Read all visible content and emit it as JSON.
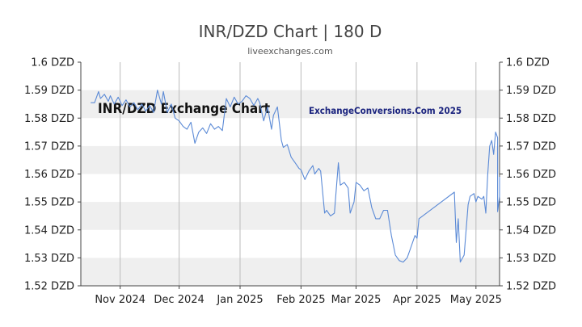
{
  "header": {
    "title": "INR/DZD Chart | 180 D",
    "subtitle": "liveexchanges.com"
  },
  "watermark": {
    "left": "INR/DZD Exchange Chart",
    "right": "ExchangeConversions.Com 2025"
  },
  "colors": {
    "line": "#5b8ad6",
    "band": "#efefef",
    "grid": "#bbbbbb",
    "axis": "#444444"
  },
  "chart_data": {
    "type": "line",
    "title": "INR/DZD Chart | 180 D",
    "ylim": [
      1.52,
      1.6
    ],
    "y_ticks": [
      1.52,
      1.53,
      1.54,
      1.55,
      1.56,
      1.57,
      1.58,
      1.59,
      1.6
    ],
    "y_tick_labels": [
      "1.52 DZD",
      "1.53 DZD",
      "1.54 DZD",
      "1.55 DZD",
      "1.56 DZD",
      "1.57 DZD",
      "1.58 DZD",
      "1.59 DZD",
      "1.6 DZD"
    ],
    "x_range": [
      "2024-10-12",
      "2025-05-13"
    ],
    "x_ticks": [
      "2024-11-01",
      "2024-12-01",
      "2025-01-01",
      "2025-02-01",
      "2025-03-01",
      "2025-04-01",
      "2025-05-01"
    ],
    "x_tick_labels": [
      "Nov 2024",
      "Dec 2024",
      "Jan 2025",
      "Feb 2025",
      "Mar 2025",
      "Apr 2025",
      "May 2025"
    ],
    "grid": true,
    "series": [
      {
        "points": [
          [
            "2024-10-17",
            1.5855
          ],
          [
            "2024-10-19",
            1.5855
          ],
          [
            "2024-10-21",
            1.5895
          ],
          [
            "2024-10-22",
            1.587
          ],
          [
            "2024-10-24",
            1.5885
          ],
          [
            "2024-10-26",
            1.586
          ],
          [
            "2024-10-27",
            1.588
          ],
          [
            "2024-10-29",
            1.585
          ],
          [
            "2024-10-31",
            1.5875
          ],
          [
            "2024-11-02",
            1.5845
          ],
          [
            "2024-11-04",
            1.5865
          ],
          [
            "2024-11-06",
            1.584
          ],
          [
            "2024-11-08",
            1.5855
          ],
          [
            "2024-11-10",
            1.583
          ],
          [
            "2024-11-12",
            1.585
          ],
          [
            "2024-11-14",
            1.5825
          ],
          [
            "2024-11-16",
            1.5845
          ],
          [
            "2024-11-18",
            1.582
          ],
          [
            "2024-11-20",
            1.59
          ],
          [
            "2024-11-22",
            1.585
          ],
          [
            "2024-11-23",
            1.5895
          ],
          [
            "2024-11-25",
            1.582
          ],
          [
            "2024-11-27",
            1.585
          ],
          [
            "2024-11-29",
            1.58
          ],
          [
            "2024-12-01",
            1.579
          ],
          [
            "2024-12-03",
            1.577
          ],
          [
            "2024-12-05",
            1.576
          ],
          [
            "2024-12-07",
            1.5785
          ],
          [
            "2024-12-09",
            1.571
          ],
          [
            "2024-12-11",
            1.575
          ],
          [
            "2024-12-13",
            1.5765
          ],
          [
            "2024-12-15",
            1.5745
          ],
          [
            "2024-12-17",
            1.578
          ],
          [
            "2024-12-19",
            1.576
          ],
          [
            "2024-12-21",
            1.577
          ],
          [
            "2024-12-23",
            1.5755
          ],
          [
            "2024-12-25",
            1.587
          ],
          [
            "2024-12-27",
            1.584
          ],
          [
            "2024-12-29",
            1.5875
          ],
          [
            "2024-12-31",
            1.585
          ],
          [
            "2025-01-02",
            1.586
          ],
          [
            "2025-01-04",
            1.588
          ],
          [
            "2025-01-06",
            1.587
          ],
          [
            "2025-01-08",
            1.5845
          ],
          [
            "2025-01-10",
            1.587
          ],
          [
            "2025-01-11",
            1.5855
          ],
          [
            "2025-01-13",
            1.579
          ],
          [
            "2025-01-15",
            1.584
          ],
          [
            "2025-01-17",
            1.576
          ],
          [
            "2025-01-18",
            1.581
          ],
          [
            "2025-01-20",
            1.584
          ],
          [
            "2025-01-22",
            1.572
          ],
          [
            "2025-01-23",
            1.5695
          ],
          [
            "2025-01-25",
            1.5705
          ],
          [
            "2025-01-27",
            1.566
          ],
          [
            "2025-01-29",
            1.564
          ],
          [
            "2025-01-31",
            1.562
          ],
          [
            "2025-02-01",
            1.5615
          ],
          [
            "2025-02-03",
            1.558
          ],
          [
            "2025-02-05",
            1.561
          ],
          [
            "2025-02-07",
            1.563
          ],
          [
            "2025-02-08",
            1.56
          ],
          [
            "2025-02-10",
            1.562
          ],
          [
            "2025-02-11",
            1.561
          ],
          [
            "2025-02-13",
            1.546
          ],
          [
            "2025-02-14",
            1.547
          ],
          [
            "2025-02-16",
            1.545
          ],
          [
            "2025-02-18",
            1.546
          ],
          [
            "2025-02-20",
            1.564
          ],
          [
            "2025-02-21",
            1.556
          ],
          [
            "2025-02-23",
            1.557
          ],
          [
            "2025-02-25",
            1.555
          ],
          [
            "2025-02-26",
            1.546
          ],
          [
            "2025-02-28",
            1.55
          ],
          [
            "2025-03-01",
            1.557
          ],
          [
            "2025-03-03",
            1.556
          ],
          [
            "2025-03-05",
            1.554
          ],
          [
            "2025-03-07",
            1.555
          ],
          [
            "2025-03-09",
            1.548
          ],
          [
            "2025-03-11",
            1.544
          ],
          [
            "2025-03-13",
            1.544
          ],
          [
            "2025-03-15",
            1.547
          ],
          [
            "2025-03-17",
            1.547
          ],
          [
            "2025-03-19",
            1.538
          ],
          [
            "2025-03-21",
            1.531
          ],
          [
            "2025-03-23",
            1.529
          ],
          [
            "2025-03-25",
            1.5285
          ],
          [
            "2025-03-27",
            1.53
          ],
          [
            "2025-03-29",
            1.534
          ],
          [
            "2025-03-31",
            1.538
          ],
          [
            "2025-04-01",
            1.537
          ],
          [
            "2025-04-02",
            1.544
          ],
          [
            "2025-04-20",
            1.5535
          ],
          [
            "2025-04-21",
            1.5355
          ],
          [
            "2025-04-22",
            1.544
          ],
          [
            "2025-04-23",
            1.5285
          ],
          [
            "2025-04-25",
            1.531
          ],
          [
            "2025-04-27",
            1.549
          ],
          [
            "2025-04-28",
            1.552
          ],
          [
            "2025-04-30",
            1.553
          ],
          [
            "2025-05-01",
            1.55
          ],
          [
            "2025-05-02",
            1.552
          ],
          [
            "2025-05-04",
            1.551
          ],
          [
            "2025-05-05",
            1.552
          ],
          [
            "2025-05-06",
            1.546
          ],
          [
            "2025-05-07",
            1.56
          ],
          [
            "2025-05-08",
            1.57
          ],
          [
            "2025-05-09",
            1.572
          ],
          [
            "2025-05-10",
            1.567
          ],
          [
            "2025-05-11",
            1.575
          ],
          [
            "2025-05-12",
            1.573
          ],
          [
            "2025-05-12",
            1.5465
          ],
          [
            "2025-05-13",
            1.552
          ],
          [
            "2025-05-13",
            1.559
          ]
        ]
      }
    ]
  }
}
